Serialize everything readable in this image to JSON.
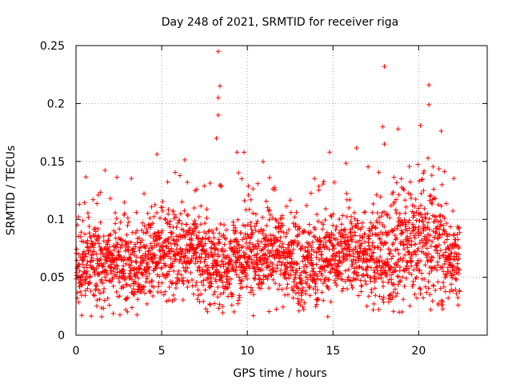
{
  "chart_data": {
    "type": "scatter",
    "title": "Day 248 of 2021, SRMTID for receiver riga",
    "xlabel": "GPS time / hours",
    "ylabel": "SRMTID / TECUs",
    "xlim": [
      0,
      24
    ],
    "ylim": [
      0,
      0.25
    ],
    "grid": true,
    "marker": "+",
    "series_color": "#ff0000",
    "x_ticks": [
      0,
      5,
      10,
      15,
      20
    ],
    "x_tick_labels": [
      "0",
      "5",
      "10",
      "15",
      "20"
    ],
    "y_ticks": [
      0,
      0.05,
      0.1,
      0.15,
      0.2,
      0.25
    ],
    "y_tick_labels": [
      "0",
      "0.05",
      "0.1",
      "0.15",
      "0.2",
      "0.25"
    ],
    "x_data_range": [
      0,
      22.4
    ],
    "points_note": "approx. 3000 SRMTID samples, mostly 0.02–0.13 TECU, mean ~0.07",
    "notable_points": [
      {
        "x": 8.3,
        "y": 0.245
      },
      {
        "x": 8.4,
        "y": 0.215
      },
      {
        "x": 8.3,
        "y": 0.205
      },
      {
        "x": 8.3,
        "y": 0.19
      },
      {
        "x": 8.2,
        "y": 0.17
      },
      {
        "x": 18.0,
        "y": 0.232
      },
      {
        "x": 17.9,
        "y": 0.18
      },
      {
        "x": 18.0,
        "y": 0.165
      },
      {
        "x": 20.6,
        "y": 0.216
      },
      {
        "x": 20.6,
        "y": 0.199
      },
      {
        "x": 20.1,
        "y": 0.181
      },
      {
        "x": 18.8,
        "y": 0.178
      },
      {
        "x": 14.8,
        "y": 0.158
      },
      {
        "x": 9.4,
        "y": 0.158
      },
      {
        "x": 1.3,
        "y": 0.121
      },
      {
        "x": 2.0,
        "y": 0.118
      },
      {
        "x": 6.5,
        "y": 0.132
      },
      {
        "x": 11.3,
        "y": 0.136
      },
      {
        "x": 14.7,
        "y": 0.016
      },
      {
        "x": 1.5,
        "y": 0.016
      },
      {
        "x": 20.7,
        "y": 0.022
      },
      {
        "x": 22.3,
        "y": 0.026
      }
    ]
  }
}
